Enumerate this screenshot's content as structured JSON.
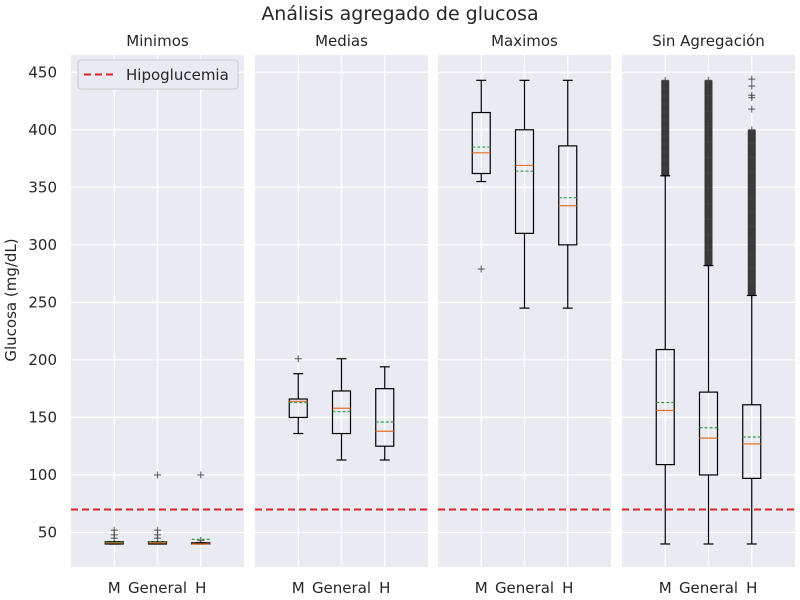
{
  "chart_data": {
    "type": "box",
    "title": "Análisis agregado de glucosa",
    "ylabel": "Glucosa (mg/dL)",
    "ylim": [
      20,
      465
    ],
    "yticks": [
      50,
      100,
      150,
      200,
      250,
      300,
      350,
      400,
      450
    ],
    "grid": true,
    "legend": {
      "placement": "top-left",
      "entries": [
        {
          "label": "Hipoglucemia",
          "style": "dashed",
          "color": "#d62728"
        }
      ]
    },
    "reference_line": {
      "name": "Hipoglucemia",
      "y": 70,
      "color": "#d62728"
    },
    "colors": {
      "background": "#eaeaf2",
      "grid": "#ffffff",
      "box": "#000000",
      "median": "#e8712b",
      "mean": "#3a9a4a",
      "outlier": "#444444"
    },
    "panels": [
      {
        "title": "Minimos",
        "categories": [
          "M",
          "General",
          "H"
        ],
        "boxes": [
          {
            "whisker_low": 40,
            "q1": 40,
            "median": 41,
            "q3": 42,
            "whisker_high": 42,
            "mean": 41.5,
            "outliers": [
              45,
              48,
              52
            ]
          },
          {
            "whisker_low": 40,
            "q1": 40,
            "median": 41,
            "q3": 42,
            "whisker_high": 42,
            "mean": 42,
            "outliers": [
              45,
              48,
              52,
              100
            ]
          },
          {
            "whisker_low": 40,
            "q1": 40,
            "median": 40,
            "q3": 41,
            "whisker_high": 41,
            "mean": 44,
            "outliers": [
              43,
              100
            ]
          }
        ]
      },
      {
        "title": "Medias",
        "categories": [
          "M",
          "General",
          "H"
        ],
        "boxes": [
          {
            "whisker_low": 136,
            "q1": 150,
            "median": 164,
            "q3": 166,
            "whisker_high": 188,
            "mean": 163,
            "outliers": [
              201
            ]
          },
          {
            "whisker_low": 113,
            "q1": 136,
            "median": 158,
            "q3": 173,
            "whisker_high": 201,
            "mean": 155,
            "outliers": []
          },
          {
            "whisker_low": 113,
            "q1": 125,
            "median": 138,
            "q3": 175,
            "whisker_high": 194,
            "mean": 146,
            "outliers": []
          }
        ]
      },
      {
        "title": "Maximos",
        "categories": [
          "M",
          "General",
          "H"
        ],
        "boxes": [
          {
            "whisker_low": 355,
            "q1": 362,
            "median": 380,
            "q3": 415,
            "whisker_high": 443,
            "mean": 385,
            "outliers": [
              279
            ]
          },
          {
            "whisker_low": 245,
            "q1": 310,
            "median": 369,
            "q3": 400,
            "whisker_high": 443,
            "mean": 364,
            "outliers": []
          },
          {
            "whisker_low": 245,
            "q1": 300,
            "median": 334,
            "q3": 386,
            "whisker_high": 443,
            "mean": 341,
            "outliers": []
          }
        ]
      },
      {
        "title": "Sin Agregación",
        "categories": [
          "M",
          "General",
          "H"
        ],
        "boxes": [
          {
            "whisker_low": 40,
            "q1": 109,
            "median": 156,
            "q3": 209,
            "whisker_high": 360,
            "mean": 163,
            "outlier_range": [
              360,
              443
            ]
          },
          {
            "whisker_low": 40,
            "q1": 100,
            "median": 132,
            "q3": 172,
            "whisker_high": 282,
            "mean": 141,
            "outlier_range": [
              282,
              443
            ]
          },
          {
            "whisker_low": 40,
            "q1": 97,
            "median": 127,
            "q3": 161,
            "whisker_high": 256,
            "mean": 133,
            "outlier_range": [
              256,
              400
            ],
            "extra_outliers": [
              418,
              428,
              430,
              438,
              444
            ]
          }
        ]
      }
    ]
  }
}
